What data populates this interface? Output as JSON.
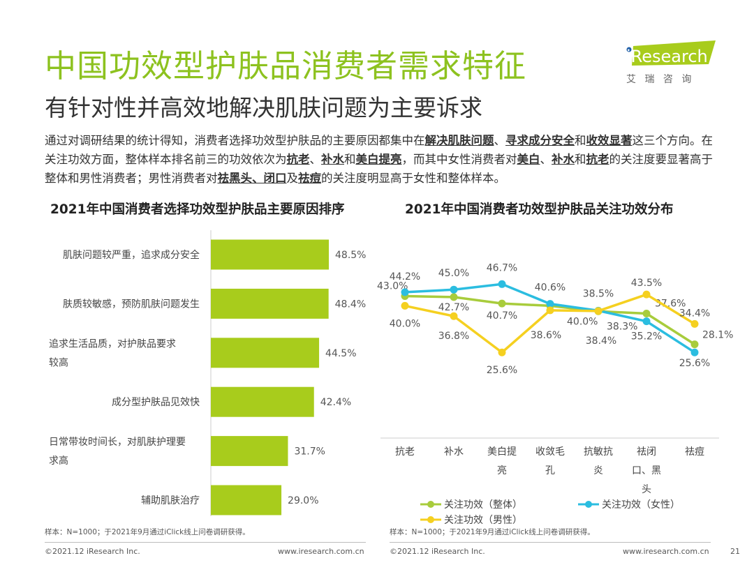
{
  "title": "中国功效型护肤品消费者需求特征",
  "subtitle": "有针对性并高效地解决肌肤问题为主要诉求",
  "logo": {
    "brand": "iResearch",
    "cn": "艾 瑞 咨 询",
    "color": "#a8cc1c"
  },
  "intro": [
    {
      "t": "通过对调研结果的统计得知，消费者选择功效型护肤品的主要原因都集中在"
    },
    {
      "t": "解决肌肤问题",
      "b": true
    },
    {
      "t": "、"
    },
    {
      "t": "寻求成分安全",
      "b": true
    },
    {
      "t": "和"
    },
    {
      "t": "收效显著",
      "b": true
    },
    {
      "t": "这三个方向。在关注功效方面，整体样本排名前三的功效依次为"
    },
    {
      "t": "抗老",
      "b": true
    },
    {
      "t": "、"
    },
    {
      "t": "补水",
      "b": true
    },
    {
      "t": "和"
    },
    {
      "t": "美白提亮",
      "b": true
    },
    {
      "t": "，而其中女性消费者对"
    },
    {
      "t": "美白",
      "b": true
    },
    {
      "t": "、"
    },
    {
      "t": "补水",
      "b": true
    },
    {
      "t": "和"
    },
    {
      "t": "抗老",
      "b": true
    },
    {
      "t": "的关注度要显著高于整体和男性消费者；男性消费者对"
    },
    {
      "t": "祛黑头、闭口",
      "b": true
    },
    {
      "t": "及"
    },
    {
      "t": "祛痘",
      "b": true
    },
    {
      "t": "的关注度明显高于女性和整体样本。"
    }
  ],
  "chart_data": [
    {
      "type": "bar",
      "orientation": "horizontal",
      "title": "2021年中国消费者选择功效型护肤品主要原因排序",
      "categories": [
        "肌肤问题较严重，追求成分安全",
        "肤质较敏感，预防肌肤问题发生",
        "追求生活品质，对护肤品要求较高",
        "成分型护肤品见效快",
        "日常带妆时间长，对肌肤护理要求高",
        "辅助肌肤治疗"
      ],
      "values": [
        48.5,
        48.4,
        44.5,
        42.4,
        31.7,
        29.0
      ],
      "labels": [
        "48.5%",
        "48.4%",
        "44.5%",
        "42.4%",
        "31.7%",
        "29.0%"
      ],
      "color": "#a8cc1c"
    },
    {
      "type": "line",
      "title": "2021年中国消费者功效型护肤品关注功效分布",
      "categories": [
        "抗老",
        "补水",
        "美白提亮",
        "收敛毛孔",
        "抗敏抗炎",
        "祛闭口、黑头",
        "祛痘"
      ],
      "ylim": [
        0,
        50
      ],
      "grid": false,
      "legend": "bottom",
      "series": [
        {
          "name": "关注功效（整体）",
          "color": "#a8cc3c",
          "values": [
            43.0,
            42.7,
            40.7,
            40.0,
            38.3,
            37.6,
            28.1
          ]
        },
        {
          "name": "关注功效（女性）",
          "color": "#2bbde0",
          "values": [
            44.2,
            45.0,
            46.7,
            40.6,
            38.5,
            35.2,
            25.6
          ]
        },
        {
          "name": "关注功效（男性）",
          "color": "#f5d020",
          "values": [
            40.0,
            36.8,
            25.6,
            38.6,
            38.4,
            43.5,
            34.4
          ]
        }
      ]
    }
  ],
  "notes": {
    "left": "样本：N=1000；于2021年9月通过iClick线上问卷调研获得。",
    "right": "样本：N=1000；于2021年9月通过iClick线上问卷调研获得。"
  },
  "footer": {
    "copy_left": "©2021.12 iResearch Inc.",
    "url_left": "www.iresearch.com.cn",
    "copy_right": "©2021.12 iResearch Inc.",
    "url_right": "www.iresearch.com.cn",
    "page": "21"
  }
}
